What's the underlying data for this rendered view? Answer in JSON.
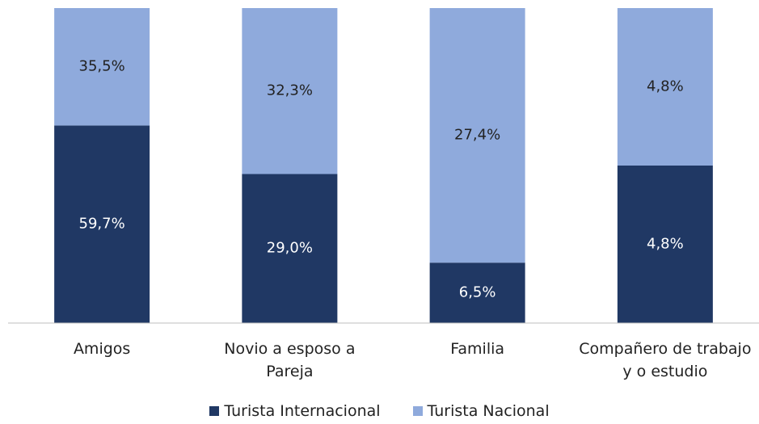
{
  "chart_data": {
    "type": "bar",
    "stack": "percent",
    "categories": [
      "Amigos",
      "Novio a esposo a Pareja",
      "Familia",
      "Compañero de trabajo y o estudio"
    ],
    "series": [
      {
        "name": "Turista Internacional",
        "color": "#203864",
        "values": [
          59.7,
          29.0,
          6.5,
          4.8
        ],
        "value_labels": [
          "59,7%",
          "29,0%",
          "6,5%",
          "4,8%"
        ]
      },
      {
        "name": "Turista Nacional",
        "color": "#8faadc",
        "values": [
          35.5,
          32.3,
          27.4,
          4.8
        ],
        "value_labels": [
          "35,5%",
          "32,3%",
          "27,4%",
          "4,8%"
        ]
      }
    ],
    "legend": "bottom"
  }
}
